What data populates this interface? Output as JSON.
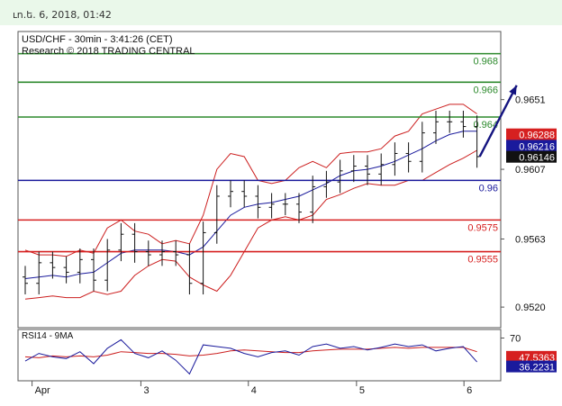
{
  "header": {
    "date_text": "ւn.ե. 6, 2018, 01:42"
  },
  "chart_data": {
    "type": "candlestick",
    "title": "USD/CHF - 30min - 3:41:26 (CET)",
    "subtitle": "Research © 2018 TRADING CENTRAL",
    "ylim": [
      0.9507,
      0.9694
    ],
    "price_ticks": [
      "0.9651",
      "0.9607",
      "0.9563",
      "0.9520"
    ],
    "price_tick_values": [
      0.9651,
      0.9607,
      0.9563,
      0.952
    ],
    "x_labels": [
      "Apr",
      "3",
      "4",
      "5",
      "6"
    ],
    "x_label_positions": [
      0.5,
      8.45,
      16.3,
      24.2,
      32.05
    ],
    "n_bars": 34,
    "levels": [
      {
        "price": 0.968,
        "label": "0.968",
        "color": "#2d8a2d"
      },
      {
        "price": 0.9662,
        "label": "0.966",
        "color": "#2d8a2d"
      },
      {
        "price": 0.964,
        "label": "0.964",
        "color": "#2d8a2d"
      },
      {
        "price": 0.96,
        "label": "0.96",
        "color": "#1a1a9c"
      },
      {
        "price": 0.9575,
        "label": "0.9575",
        "color": "#d62020"
      },
      {
        "price": 0.9555,
        "label": "0.9555",
        "color": "#d62020"
      }
    ],
    "price_badges": [
      {
        "price": 0.96288,
        "label": "0.96288",
        "color": "#d62020"
      },
      {
        "price": 0.96216,
        "label": "0.96216",
        "color": "#1a1a9c"
      },
      {
        "price": 0.96146,
        "label": "0.96146",
        "color": "#111111"
      }
    ],
    "close": [
      0.9535,
      0.9548,
      0.9545,
      0.9542,
      0.955,
      0.9537,
      0.9556,
      0.9566,
      0.9555,
      0.9553,
      0.9555,
      0.9553,
      0.9535,
      0.9567,
      0.959,
      0.9593,
      0.959,
      0.9583,
      0.9585,
      0.9585,
      0.958,
      0.9596,
      0.9599,
      0.9606,
      0.9609,
      0.9604,
      0.961,
      0.9617,
      0.9612,
      0.963,
      0.9637,
      0.9637,
      0.9634,
      0.9615
    ],
    "upper_band": [
      0.9556,
      0.9553,
      0.9553,
      0.9552,
      0.9556,
      0.9554,
      0.957,
      0.9575,
      0.9568,
      0.9566,
      0.956,
      0.9562,
      0.956,
      0.9578,
      0.9607,
      0.9617,
      0.9615,
      0.96,
      0.9598,
      0.96,
      0.9608,
      0.9612,
      0.9608,
      0.9617,
      0.9618,
      0.9618,
      0.962,
      0.9628,
      0.9631,
      0.9642,
      0.9645,
      0.9648,
      0.9648,
      0.9642
    ],
    "middle_band": [
      0.9538,
      0.9539,
      0.954,
      0.9539,
      0.9541,
      0.9542,
      0.9548,
      0.9554,
      0.9556,
      0.9556,
      0.9556,
      0.9555,
      0.9553,
      0.9558,
      0.9568,
      0.9578,
      0.9583,
      0.9585,
      0.9586,
      0.9588,
      0.959,
      0.9594,
      0.9598,
      0.9603,
      0.9606,
      0.9607,
      0.9609,
      0.9612,
      0.9616,
      0.962,
      0.9625,
      0.9629,
      0.9631,
      0.9631
    ],
    "lower_band": [
      0.9525,
      0.9526,
      0.9527,
      0.9526,
      0.9526,
      0.953,
      0.9528,
      0.953,
      0.954,
      0.9546,
      0.955,
      0.9549,
      0.9539,
      0.9534,
      0.953,
      0.954,
      0.9555,
      0.957,
      0.9575,
      0.9577,
      0.9575,
      0.9578,
      0.9588,
      0.9591,
      0.9595,
      0.9598,
      0.9597,
      0.9597,
      0.96,
      0.96,
      0.9605,
      0.961,
      0.9614,
      0.9619
    ],
    "projection": {
      "from_bar": 33.2,
      "from_price": 0.9615,
      "to_bar": 35.9,
      "to_price": 0.966
    },
    "rsi": {
      "label": "RSI14 - 9MA",
      "ylim": [
        20,
        80
      ],
      "tick": "70",
      "tick_value": 70,
      "badges": [
        {
          "value": 47.5363,
          "label": "47.5363",
          "color": "#d62020"
        },
        {
          "value": 36.2231,
          "label": "36.2231",
          "color": "#1a1a9c"
        }
      ],
      "values": [
        43,
        52,
        48,
        46,
        54,
        40,
        58,
        68,
        52,
        47,
        55,
        44,
        28,
        62,
        60,
        58,
        52,
        48,
        53,
        55,
        50,
        60,
        63,
        58,
        60,
        56,
        59,
        63,
        60,
        62,
        55,
        58,
        60,
        42
      ],
      "ma": [
        48,
        47,
        49,
        48,
        49,
        48,
        50,
        54,
        53,
        52,
        52,
        51,
        49,
        50,
        52,
        55,
        56,
        55,
        54,
        53,
        53,
        55,
        56,
        57,
        57,
        57,
        58,
        59,
        58,
        59,
        59,
        59,
        59,
        54
      ]
    }
  }
}
